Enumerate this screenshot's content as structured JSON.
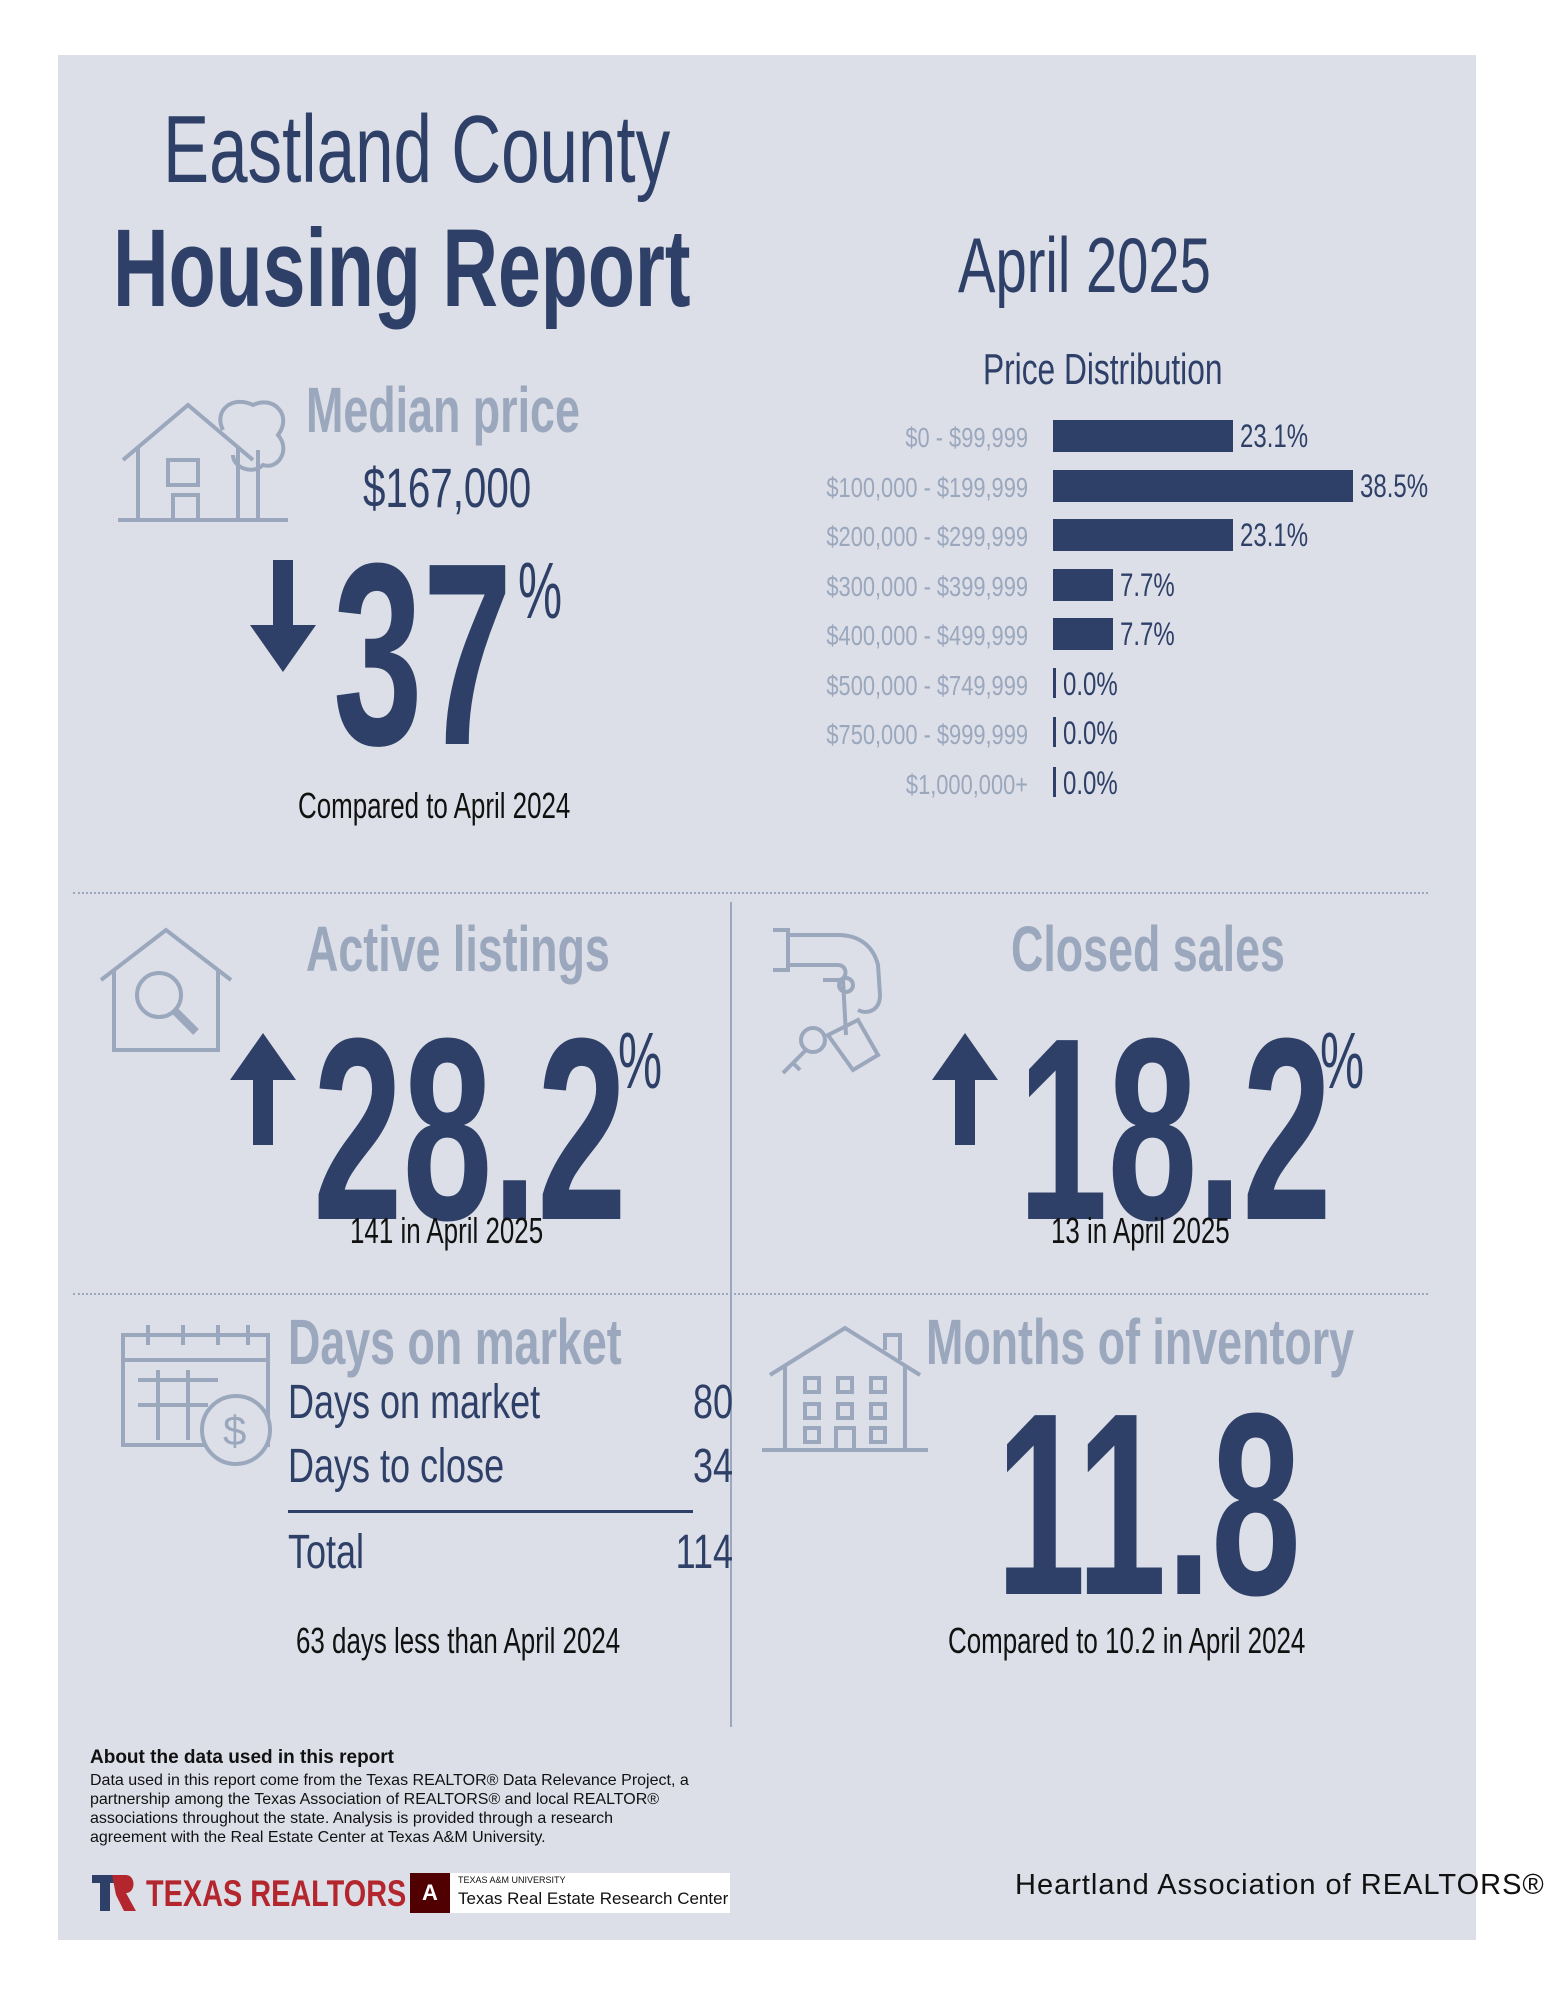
{
  "header": {
    "title_line1": "Eastland County",
    "title_line2": "Housing Report",
    "month": "April 2025"
  },
  "median_price": {
    "heading": "Median price",
    "value": "$167,000",
    "change": "37",
    "percent_sign": "%",
    "direction": "down",
    "comparison": "Compared to April 2024",
    "icon": "house-with-tree-icon"
  },
  "price_distribution": {
    "heading": "Price Distribution"
  },
  "chart_data": {
    "type": "bar",
    "title": "Price Distribution",
    "orientation": "horizontal",
    "categories": [
      "$0 - $99,999",
      "$100,000 - $199,999",
      "$200,000 - $299,999",
      "$300,000 - $399,999",
      "$400,000 - $499,999",
      "$500,000 - $749,999",
      "$750,000 - $999,999",
      "$1,000,000+"
    ],
    "values": [
      23.1,
      38.5,
      23.1,
      7.7,
      7.7,
      0.0,
      0.0,
      0.0
    ],
    "labels": [
      "23.1%",
      "38.5%",
      "23.1%",
      "7.7%",
      "7.7%",
      "0.0%",
      "0.0%",
      "0.0%"
    ],
    "xlim": [
      0,
      38.5
    ],
    "grid": false
  },
  "active_listings": {
    "heading": "Active listings",
    "change": "28.2",
    "percent_sign": "%",
    "direction": "up",
    "detail": "141 in April 2025",
    "icon": "house-magnifier-icon"
  },
  "closed_sales": {
    "heading": "Closed sales",
    "change": "18.2",
    "percent_sign": "%",
    "direction": "up",
    "detail": "13 in April 2025",
    "icon": "hand-keys-icon"
  },
  "days_on_market": {
    "heading": "Days on market",
    "rows": [
      {
        "label": "Days on market",
        "value": "80"
      },
      {
        "label": "Days to close",
        "value": "34"
      }
    ],
    "total_label": "Total",
    "total_value": "114",
    "comparison": "63 days less than April 2024",
    "icon": "calendar-dollar-icon"
  },
  "months_inventory": {
    "heading": "Months of inventory",
    "value": "11.8",
    "comparison": "Compared to 10.2 in April 2024",
    "icon": "apartment-building-icon"
  },
  "footer": {
    "about_heading": "About the data used in this report",
    "about_text": "Data used in this report come from the Texas REALTOR® Data Relevance Project, a partnership among the Texas Association of REALTORS® and local REALTOR® associations throughout the state. Analysis is provided through a research agreement with the Real Estate Center at Texas A&M University.",
    "texas_realtors": "TEXAS REALTORS",
    "tamu_small": "TEXAS A&M UNIVERSITY",
    "tamu_center": "Texas Real Estate Research Center",
    "heartland": "Heartland Association of REALTORS®"
  },
  "colors": {
    "navy": "#2f4068",
    "muted": "#9aa7bd",
    "background": "#dcdfe7",
    "texas_red": "#b4262e",
    "tamu_maroon": "#500000"
  }
}
